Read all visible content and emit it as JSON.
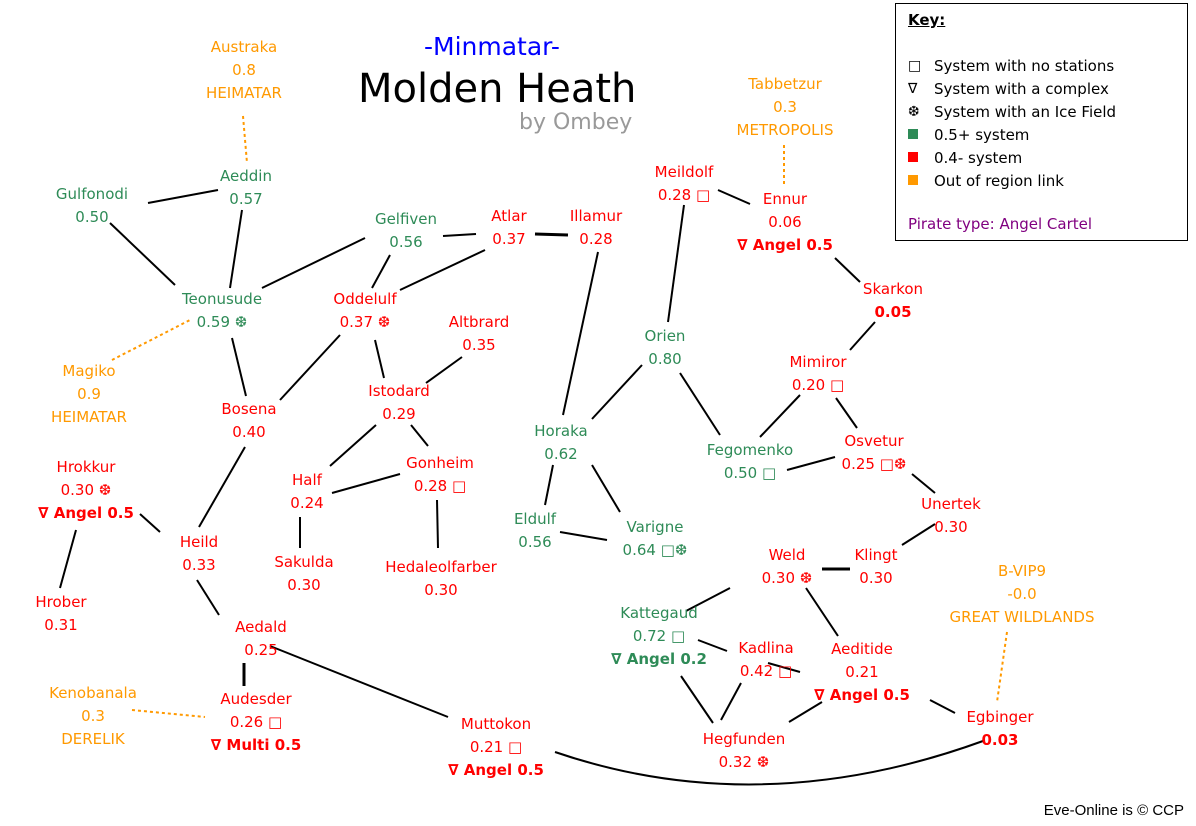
{
  "header": {
    "subtitle": "-Minmatar-",
    "title": "Molden Heath",
    "author": "by Ombey"
  },
  "key": {
    "title": "Key:",
    "items": [
      {
        "symbol": "□",
        "label": "System with no stations"
      },
      {
        "symbol": "∇",
        "label": "System with a complex"
      },
      {
        "symbol": "❆",
        "label": "System with an Ice Field"
      },
      {
        "swatch": "#2e8b57",
        "label": "0.5+ system"
      },
      {
        "swatch": "#ff0000",
        "label": "0.4- system"
      },
      {
        "swatch": "#ff9900",
        "label": "Out of region link"
      }
    ],
    "pirate": "Pirate type: Angel Cartel"
  },
  "colors": {
    "high": "#2e8b57",
    "low": "#ff0000",
    "out": "#ff9900",
    "link": "#000000"
  },
  "systems": [
    {
      "id": "austraka",
      "name": "Austraka",
      "security": "0.8",
      "extra": "HEIMATAR",
      "class": "out"
    },
    {
      "id": "aeddin",
      "name": "Aeddin",
      "security": "0.57",
      "class": "high"
    },
    {
      "id": "gulfonodi",
      "name": "Gulfonodi",
      "security": "0.50",
      "class": "high"
    },
    {
      "id": "gelfiven",
      "name": "Gelfiven",
      "security": "0.56",
      "class": "high"
    },
    {
      "id": "atlar",
      "name": "Atlar",
      "security": "0.37",
      "class": "low"
    },
    {
      "id": "illamur",
      "name": "Illamur",
      "security": "0.28",
      "class": "low"
    },
    {
      "id": "meildolf",
      "name": "Meildolf",
      "security": "0.28 □",
      "class": "low"
    },
    {
      "id": "tabbetzur",
      "name": "Tabbetzur",
      "security": "0.3",
      "extra": "METROPOLIS",
      "class": "out"
    },
    {
      "id": "ennur",
      "name": "Ennur",
      "security": "0.06",
      "extra": "∇ Angel 0.5",
      "class": "low"
    },
    {
      "id": "skarkon",
      "name": "Skarkon",
      "security": "0.05",
      "class": "low"
    },
    {
      "id": "teonusude",
      "name": "Teonusude",
      "security": "0.59 ❆",
      "class": "high"
    },
    {
      "id": "oddelulf",
      "name": "Oddelulf",
      "security": "0.37 ❆",
      "class": "low"
    },
    {
      "id": "altbrard",
      "name": "Altbrard",
      "security": "0.35",
      "class": "low"
    },
    {
      "id": "orien",
      "name": "Orien",
      "security": "0.80",
      "class": "high"
    },
    {
      "id": "mimiror",
      "name": "Mimiror",
      "security": "0.20 □",
      "class": "low"
    },
    {
      "id": "magiko",
      "name": "Magiko",
      "security": "0.9",
      "extra": "HEIMATAR",
      "class": "out"
    },
    {
      "id": "istodard",
      "name": "Istodard",
      "security": "0.29",
      "class": "low"
    },
    {
      "id": "bosena",
      "name": "Bosena",
      "security": "0.40",
      "class": "low"
    },
    {
      "id": "horaka",
      "name": "Horaka",
      "security": "0.62",
      "class": "high"
    },
    {
      "id": "fegomenko",
      "name": "Fegomenko",
      "security": "0.50 □",
      "class": "high"
    },
    {
      "id": "osvetur",
      "name": "Osvetur",
      "security": "0.25 □❆",
      "class": "low"
    },
    {
      "id": "hrokkur",
      "name": "Hrokkur",
      "security": "0.30 ❆",
      "extra": "∇ Angel 0.5",
      "class": "low"
    },
    {
      "id": "gonheim",
      "name": "Gonheim",
      "security": "0.28 □",
      "class": "low"
    },
    {
      "id": "half",
      "name": "Half",
      "security": "0.24",
      "class": "low"
    },
    {
      "id": "unertek",
      "name": "Unertek",
      "security": "0.30",
      "class": "low"
    },
    {
      "id": "heild",
      "name": "Heild",
      "security": "0.33",
      "class": "low"
    },
    {
      "id": "eldulf",
      "name": "Eldulf",
      "security": "0.56",
      "class": "high"
    },
    {
      "id": "varigne",
      "name": "Varigne",
      "security": "0.64 □❆",
      "class": "high"
    },
    {
      "id": "weld",
      "name": "Weld",
      "security": "0.30 ❆",
      "class": "low"
    },
    {
      "id": "klingt",
      "name": "Klingt",
      "security": "0.30",
      "class": "low"
    },
    {
      "id": "sakulda",
      "name": "Sakulda",
      "security": "0.30",
      "class": "low"
    },
    {
      "id": "hedaleolfarber",
      "name": "Hedaleolfarber",
      "security": "0.30",
      "class": "low"
    },
    {
      "id": "bvip9",
      "name": "B-VIP9",
      "security": "-0.0",
      "extra": "GREAT WILDLANDS",
      "class": "out"
    },
    {
      "id": "hrober",
      "name": "Hrober",
      "security": "0.31",
      "class": "low"
    },
    {
      "id": "kattegaud",
      "name": "Kattegaud",
      "security": "0.72 □",
      "extra": "∇ Angel 0.2",
      "class": "high"
    },
    {
      "id": "aedald",
      "name": "Aedald",
      "security": "0.25",
      "class": "low"
    },
    {
      "id": "kadlina",
      "name": "Kadlina",
      "security": "0.42 □",
      "class": "low"
    },
    {
      "id": "aeditide",
      "name": "Aeditide",
      "security": "0.21",
      "extra": "∇ Angel 0.5",
      "class": "low"
    },
    {
      "id": "kenobanala",
      "name": "Kenobanala",
      "security": "0.3",
      "extra": "DERELIK",
      "class": "out"
    },
    {
      "id": "audesder",
      "name": "Audesder",
      "security": "0.26 □",
      "extra": "∇ Multi 0.5",
      "class": "low"
    },
    {
      "id": "egbinger",
      "name": "Egbinger",
      "security": "0.03",
      "class": "low"
    },
    {
      "id": "muttokon",
      "name": "Muttokon",
      "security": "0.21 □",
      "extra": "∇ Angel 0.5",
      "class": "low"
    },
    {
      "id": "hegfunden",
      "name": "Hegfunden",
      "security": "0.32 ❆",
      "class": "low"
    }
  ],
  "links": [
    [
      "aeddin",
      "gulfonodi"
    ],
    [
      "aeddin",
      "teonusude"
    ],
    [
      "gulfonodi",
      "teonusude"
    ],
    [
      "teonusude",
      "gelfiven"
    ],
    [
      "gelfiven",
      "atlar"
    ],
    [
      "atlar",
      "illamur"
    ],
    [
      "gelfiven",
      "oddelulf"
    ],
    [
      "atlar",
      "oddelulf"
    ],
    [
      "teonusude",
      "bosena"
    ],
    [
      "oddelulf",
      "bosena"
    ],
    [
      "oddelulf",
      "istodard"
    ],
    [
      "altbrard",
      "istodard"
    ],
    [
      "istodard",
      "half"
    ],
    [
      "istodard",
      "gonheim"
    ],
    [
      "half",
      "gonheim"
    ],
    [
      "half",
      "sakulda"
    ],
    [
      "gonheim",
      "hedaleolfarber"
    ],
    [
      "bosena",
      "heild"
    ],
    [
      "hrokkur",
      "heild"
    ],
    [
      "hrokkur",
      "hrober"
    ],
    [
      "heild",
      "aedald"
    ],
    [
      "aedald",
      "audesder"
    ],
    [
      "aedald",
      "muttokon"
    ],
    [
      "illamur",
      "horaka"
    ],
    [
      "meildolf",
      "orien"
    ],
    [
      "meildolf",
      "ennur"
    ],
    [
      "ennur",
      "skarkon"
    ],
    [
      "skarkon",
      "mimiror"
    ],
    [
      "mimiror",
      "fegomenko"
    ],
    [
      "mimiror",
      "osvetur"
    ],
    [
      "orien",
      "horaka"
    ],
    [
      "orien",
      "fegomenko"
    ],
    [
      "fegomenko",
      "osvetur"
    ],
    [
      "osvetur",
      "unertek"
    ],
    [
      "unertek",
      "klingt"
    ],
    [
      "weld",
      "klingt"
    ],
    [
      "horaka",
      "eldulf"
    ],
    [
      "horaka",
      "varigne"
    ],
    [
      "eldulf",
      "varigne"
    ],
    [
      "weld",
      "kattegaud"
    ],
    [
      "weld",
      "aeditide"
    ],
    [
      "kattegaud",
      "kadlina"
    ],
    [
      "kadlina",
      "aeditide"
    ],
    [
      "kattegaud",
      "hegfunden"
    ],
    [
      "kadlina",
      "hegfunden"
    ],
    [
      "aeditide",
      "hegfunden"
    ],
    [
      "aeditide",
      "egbinger"
    ],
    [
      "muttokon",
      "egbinger"
    ]
  ],
  "external_links": [
    [
      "austraka",
      "aeddin"
    ],
    [
      "magiko",
      "teonusude"
    ],
    [
      "kenobanala",
      "audesder"
    ],
    [
      "tabbetzur",
      "ennur"
    ],
    [
      "bvip9",
      "egbinger"
    ]
  ],
  "footer": {
    "copyright": "Eve-Online is © CCP"
  }
}
